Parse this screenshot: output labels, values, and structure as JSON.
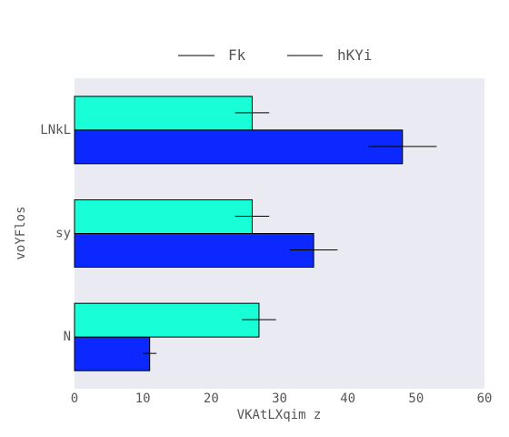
{
  "chart_data": {
    "type": "bar",
    "orientation": "horizontal",
    "categories": [
      "N",
      "sy",
      "LNkL"
    ],
    "series": [
      {
        "name": "Fk",
        "values": [
          11,
          35,
          48
        ],
        "errors": [
          1,
          3.5,
          5
        ],
        "color": "#0a28ff"
      },
      {
        "name": "hKYi",
        "values": [
          27,
          26,
          26
        ],
        "errors": [
          2.5,
          2.5,
          2.5
        ],
        "color": "#18ffd8"
      }
    ],
    "xlabel": "VKAtLXqim z",
    "ylabel": "voYFlos",
    "xlim": [
      0,
      60
    ],
    "xticks": [
      0,
      10,
      20,
      30,
      40,
      50,
      60
    ],
    "grid": false,
    "legend_position": "top",
    "plot_background": "#eaeaf2"
  }
}
